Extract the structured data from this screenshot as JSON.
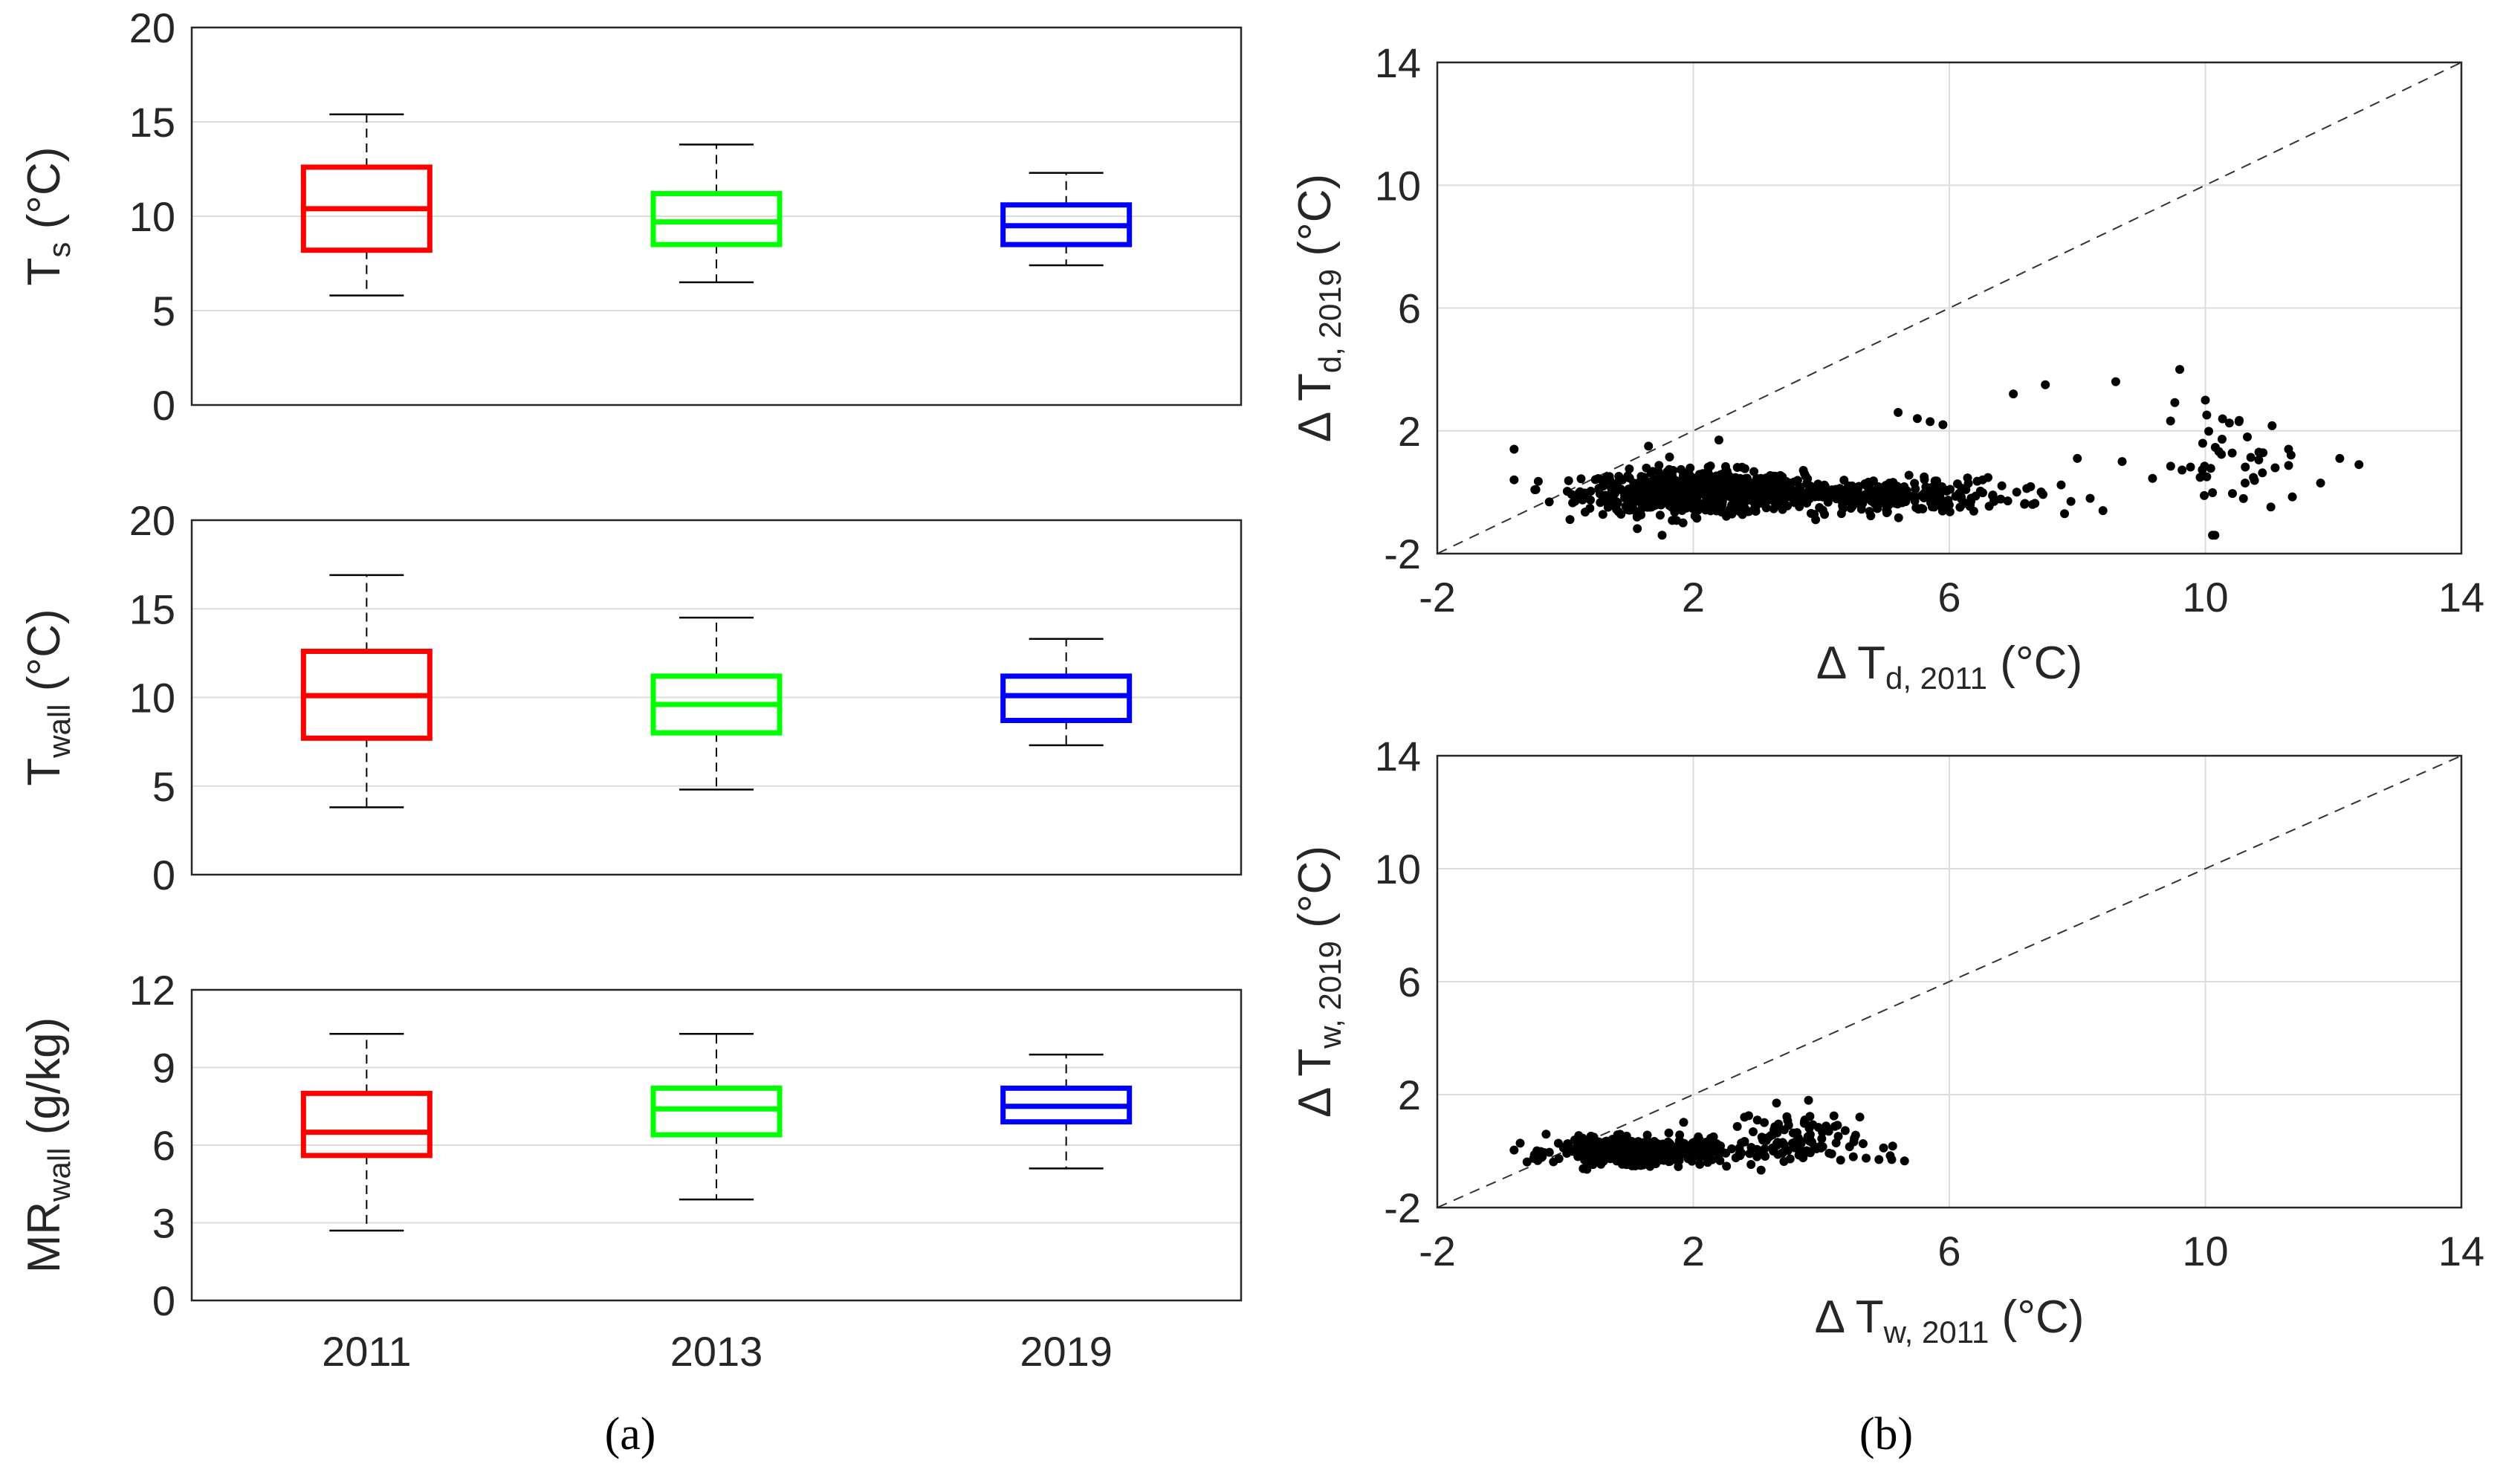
{
  "panel_a": {
    "caption": "(a)",
    "categories": [
      "2011",
      "2013",
      "2019"
    ]
  },
  "panel_b": {
    "caption": "(b)"
  },
  "chart_data": [
    {
      "type": "box",
      "id": "ts",
      "title": "",
      "ylabel": "T",
      "ylabel_sub": "s",
      "ylabel_unit": " (°C)",
      "ylim": [
        0,
        20
      ],
      "yticks": [
        0,
        5,
        10,
        15,
        20
      ],
      "categories": [
        "2011",
        "2013",
        "2019"
      ],
      "colors": [
        "#ff0000",
        "#00ff00",
        "#0000ff"
      ],
      "series": [
        {
          "name": "2011",
          "min": 5.8,
          "q1": 8.2,
          "median": 10.4,
          "q3": 12.6,
          "max": 15.4
        },
        {
          "name": "2013",
          "min": 6.5,
          "q1": 8.5,
          "median": 9.7,
          "q3": 11.2,
          "max": 13.8
        },
        {
          "name": "2019",
          "min": 7.4,
          "q1": 8.5,
          "median": 9.5,
          "q3": 10.6,
          "max": 12.3
        }
      ]
    },
    {
      "type": "box",
      "id": "twall",
      "ylabel": "T",
      "ylabel_sub": "wall",
      "ylabel_unit": " (°C)",
      "ylim": [
        0,
        20
      ],
      "yticks": [
        0,
        5,
        10,
        15,
        20
      ],
      "categories": [
        "2011",
        "2013",
        "2019"
      ],
      "colors": [
        "#ff0000",
        "#00ff00",
        "#0000ff"
      ],
      "series": [
        {
          "name": "2011",
          "min": 3.8,
          "q1": 7.7,
          "median": 10.1,
          "q3": 12.6,
          "max": 16.9
        },
        {
          "name": "2013",
          "min": 4.8,
          "q1": 8.0,
          "median": 9.6,
          "q3": 11.2,
          "max": 14.5
        },
        {
          "name": "2019",
          "min": 7.3,
          "q1": 8.7,
          "median": 10.1,
          "q3": 11.2,
          "max": 13.3
        }
      ]
    },
    {
      "type": "box",
      "id": "mrwall",
      "ylabel": "MR",
      "ylabel_sub": "wall",
      "ylabel_unit": " (g/kg)",
      "ylim": [
        0,
        12
      ],
      "yticks": [
        0,
        3,
        6,
        9,
        12
      ],
      "categories": [
        "2011",
        "2013",
        "2019"
      ],
      "colors": [
        "#ff0000",
        "#00ff00",
        "#0000ff"
      ],
      "series": [
        {
          "name": "2011",
          "min": 2.7,
          "q1": 5.6,
          "median": 6.5,
          "q3": 8.0,
          "max": 10.3
        },
        {
          "name": "2013",
          "min": 3.9,
          "q1": 6.4,
          "median": 7.4,
          "q3": 8.2,
          "max": 10.3
        },
        {
          "name": "2019",
          "min": 5.1,
          "q1": 6.9,
          "median": 7.5,
          "q3": 8.2,
          "max": 9.5
        }
      ]
    },
    {
      "type": "scatter",
      "id": "dtd",
      "xlabel": "Δ T",
      "xlabel_sub": "d, 2011",
      "xlabel_unit": " (°C)",
      "ylabel": "Δ T",
      "ylabel_sub": "d, 2019",
      "ylabel_unit": " (°C)",
      "xlim": [
        -2,
        14
      ],
      "ylim": [
        -2,
        14
      ],
      "xticks": [
        -2,
        2,
        6,
        10,
        14
      ],
      "yticks": [
        -2,
        2,
        6,
        10,
        14
      ],
      "reference_line": "1:1 dashed",
      "clusters": [
        {
          "x_mean": 2.0,
          "x_sd": 0.85,
          "y_mean": 0.0,
          "y_sd": 0.35,
          "n": 700
        },
        {
          "x_mean": 4.6,
          "x_sd": 1.2,
          "y_mean": -0.1,
          "y_sd": 0.28,
          "n": 300
        },
        {
          "x_mean": 10.4,
          "x_sd": 0.55,
          "y_mean": 0.9,
          "y_sd": 0.9,
          "n": 45
        }
      ],
      "points": [
        [
          -0.8,
          1.4
        ],
        [
          1.3,
          1.5
        ],
        [
          2.4,
          1.7
        ],
        [
          5.2,
          2.6
        ],
        [
          5.5,
          2.4
        ],
        [
          5.7,
          2.3
        ],
        [
          5.9,
          2.2
        ],
        [
          7.0,
          3.2
        ],
        [
          7.5,
          3.5
        ],
        [
          8.6,
          3.6
        ],
        [
          9.6,
          4.0
        ],
        [
          10.0,
          3.0
        ],
        [
          8.4,
          -0.6
        ],
        [
          7.8,
          -0.7
        ],
        [
          6.7,
          -0.3
        ],
        [
          7.3,
          -0.4
        ],
        [
          7.9,
          -0.3
        ],
        [
          8.2,
          -0.2
        ],
        [
          8.0,
          1.1
        ],
        [
          8.7,
          1.0
        ],
        [
          12.1,
          1.1
        ],
        [
          12.4,
          0.9
        ],
        [
          11.8,
          0.3
        ],
        [
          11.3,
          1.4
        ]
      ]
    },
    {
      "type": "scatter",
      "id": "dtw",
      "xlabel": "Δ T",
      "xlabel_sub": "w, 2011",
      "xlabel_unit": " (°C)",
      "ylabel": "Δ T",
      "ylabel_sub": "w, 2019",
      "ylabel_unit": " (°C)",
      "xlim": [
        -2,
        14
      ],
      "ylim": [
        -2,
        14
      ],
      "xticks": [
        -2,
        2,
        6,
        10,
        14
      ],
      "yticks": [
        -2,
        2,
        6,
        10,
        14
      ],
      "reference_line": "1:1 dashed",
      "clusters": [
        {
          "x_mean": 1.1,
          "x_sd": 0.6,
          "y_mean": 0.0,
          "y_sd": 0.22,
          "n": 450
        },
        {
          "x_mean": 3.4,
          "x_sd": 0.6,
          "y_mean": 0.3,
          "y_sd": 0.45,
          "n": 120
        }
      ],
      "points": [
        [
          -0.3,
          0.6
        ],
        [
          4.5,
          -0.2
        ],
        [
          4.7,
          -0.25
        ],
        [
          4.9,
          -0.3
        ],
        [
          5.1,
          -0.3
        ],
        [
          5.3,
          -0.35
        ],
        [
          3.3,
          1.7
        ],
        [
          3.8,
          1.8
        ],
        [
          2.8,
          1.2
        ],
        [
          3.0,
          1.1
        ]
      ]
    }
  ]
}
